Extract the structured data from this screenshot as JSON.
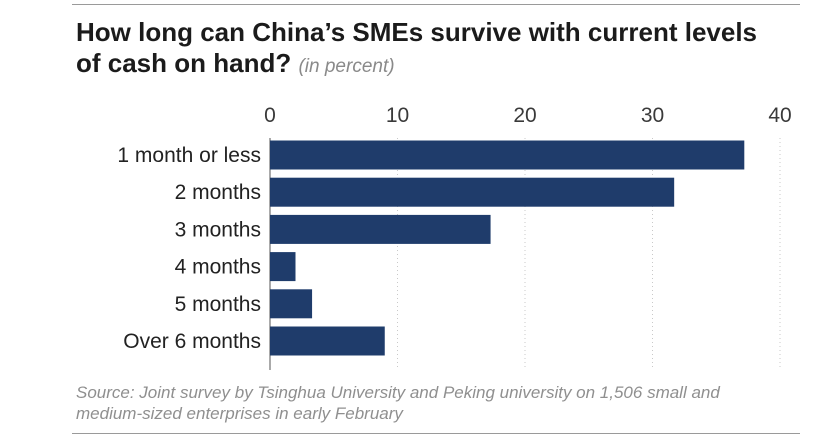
{
  "colors": {
    "bar": "#1f3c6b",
    "grid": "#c9c9c9",
    "rule": "#9a9a9a"
  },
  "chart_data": {
    "type": "bar",
    "orientation": "horizontal",
    "title": "How long can China’s SMEs survive with current levels of cash on hand?",
    "subtitle": "(in percent)",
    "categories": [
      "1 month or less",
      "2 months",
      "3 months",
      "4 months",
      "5 months",
      "Over 6 months"
    ],
    "values": [
      37.2,
      31.7,
      17.3,
      2.0,
      3.3,
      9.0
    ],
    "xlim": [
      0,
      40
    ],
    "xticks": [
      "0",
      "10",
      "20",
      "30",
      "40"
    ],
    "grid": true,
    "source": "Source: Joint survey by Tsinghua University and Peking university on 1,506 small and medium-sized enterprises in early February"
  }
}
